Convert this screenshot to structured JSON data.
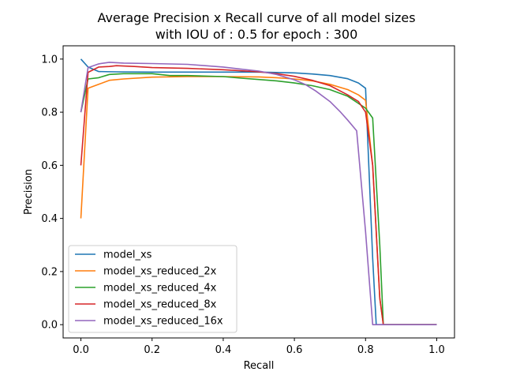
{
  "chart_data": {
    "type": "line",
    "title_lines": [
      "Average Precision x Recall curve of all model sizes",
      "with IOU of : 0.5 for epoch : 300"
    ],
    "xlabel": "Recall",
    "ylabel": "Precision",
    "xlim": [
      -0.05,
      1.05
    ],
    "ylim": [
      -0.05,
      1.05
    ],
    "xticks": [
      {
        "value": 0.0,
        "label": "0.0"
      },
      {
        "value": 0.2,
        "label": "0.2"
      },
      {
        "value": 0.4,
        "label": "0.4"
      },
      {
        "value": 0.6,
        "label": "0.6"
      },
      {
        "value": 0.8,
        "label": "0.8"
      },
      {
        "value": 1.0,
        "label": "1.0"
      }
    ],
    "yticks": [
      {
        "value": 0.0,
        "label": "0.0"
      },
      {
        "value": 0.2,
        "label": "0.2"
      },
      {
        "value": 0.4,
        "label": "0.4"
      },
      {
        "value": 0.6,
        "label": "0.6"
      },
      {
        "value": 0.8,
        "label": "0.8"
      },
      {
        "value": 1.0,
        "label": "1.0"
      }
    ],
    "grid": false,
    "legend_position": "lower-left",
    "series": [
      {
        "name": "model_xs",
        "color": "#1f77b4",
        "points": [
          [
            0.0,
            1.0
          ],
          [
            0.02,
            0.97
          ],
          [
            0.05,
            0.953
          ],
          [
            0.1,
            0.952
          ],
          [
            0.2,
            0.951
          ],
          [
            0.3,
            0.951
          ],
          [
            0.4,
            0.951
          ],
          [
            0.5,
            0.951
          ],
          [
            0.6,
            0.948
          ],
          [
            0.65,
            0.944
          ],
          [
            0.7,
            0.938
          ],
          [
            0.75,
            0.926
          ],
          [
            0.78,
            0.91
          ],
          [
            0.8,
            0.89
          ],
          [
            0.82,
            0.25
          ],
          [
            0.83,
            0.0
          ],
          [
            0.85,
            0.0
          ],
          [
            1.0,
            0.0
          ]
        ]
      },
      {
        "name": "model_xs_reduced_2x",
        "color": "#ff7f0e",
        "points": [
          [
            0.0,
            0.4
          ],
          [
            0.02,
            0.89
          ],
          [
            0.05,
            0.905
          ],
          [
            0.08,
            0.92
          ],
          [
            0.12,
            0.925
          ],
          [
            0.2,
            0.932
          ],
          [
            0.3,
            0.934
          ],
          [
            0.4,
            0.934
          ],
          [
            0.5,
            0.933
          ],
          [
            0.55,
            0.93
          ],
          [
            0.6,
            0.925
          ],
          [
            0.65,
            0.918
          ],
          [
            0.7,
            0.905
          ],
          [
            0.75,
            0.885
          ],
          [
            0.78,
            0.865
          ],
          [
            0.8,
            0.845
          ],
          [
            0.82,
            0.6
          ],
          [
            0.84,
            0.1
          ],
          [
            0.85,
            0.0
          ],
          [
            1.0,
            0.0
          ]
        ]
      },
      {
        "name": "model_xs_reduced_4x",
        "color": "#2ca02c",
        "points": [
          [
            0.0,
            0.8
          ],
          [
            0.02,
            0.925
          ],
          [
            0.05,
            0.93
          ],
          [
            0.08,
            0.942
          ],
          [
            0.12,
            0.945
          ],
          [
            0.2,
            0.945
          ],
          [
            0.25,
            0.938
          ],
          [
            0.3,
            0.938
          ],
          [
            0.4,
            0.934
          ],
          [
            0.45,
            0.928
          ],
          [
            0.5,
            0.923
          ],
          [
            0.55,
            0.918
          ],
          [
            0.6,
            0.91
          ],
          [
            0.65,
            0.9
          ],
          [
            0.7,
            0.885
          ],
          [
            0.75,
            0.86
          ],
          [
            0.8,
            0.815
          ],
          [
            0.82,
            0.778
          ],
          [
            0.84,
            0.3
          ],
          [
            0.85,
            0.0
          ],
          [
            1.0,
            0.0
          ]
        ]
      },
      {
        "name": "model_xs_reduced_8x",
        "color": "#d62728",
        "points": [
          [
            0.0,
            0.6
          ],
          [
            0.02,
            0.95
          ],
          [
            0.05,
            0.97
          ],
          [
            0.08,
            0.972
          ],
          [
            0.1,
            0.975
          ],
          [
            0.15,
            0.972
          ],
          [
            0.2,
            0.968
          ],
          [
            0.3,
            0.965
          ],
          [
            0.4,
            0.96
          ],
          [
            0.5,
            0.952
          ],
          [
            0.55,
            0.945
          ],
          [
            0.6,
            0.935
          ],
          [
            0.65,
            0.92
          ],
          [
            0.7,
            0.9
          ],
          [
            0.75,
            0.865
          ],
          [
            0.78,
            0.84
          ],
          [
            0.8,
            0.8
          ],
          [
            0.82,
            0.6
          ],
          [
            0.84,
            0.1
          ],
          [
            0.85,
            0.0
          ],
          [
            1.0,
            0.0
          ]
        ]
      },
      {
        "name": "model_xs_reduced_16x",
        "color": "#9467bd",
        "points": [
          [
            0.0,
            0.8
          ],
          [
            0.02,
            0.968
          ],
          [
            0.05,
            0.982
          ],
          [
            0.08,
            0.988
          ],
          [
            0.12,
            0.985
          ],
          [
            0.2,
            0.983
          ],
          [
            0.3,
            0.98
          ],
          [
            0.35,
            0.975
          ],
          [
            0.4,
            0.97
          ],
          [
            0.45,
            0.962
          ],
          [
            0.5,
            0.955
          ],
          [
            0.55,
            0.942
          ],
          [
            0.6,
            0.922
          ],
          [
            0.63,
            0.905
          ],
          [
            0.66,
            0.88
          ],
          [
            0.7,
            0.84
          ],
          [
            0.73,
            0.8
          ],
          [
            0.75,
            0.77
          ],
          [
            0.775,
            0.73
          ],
          [
            0.8,
            0.35
          ],
          [
            0.82,
            0.0
          ],
          [
            0.85,
            0.0
          ],
          [
            1.0,
            0.0
          ]
        ]
      }
    ]
  }
}
